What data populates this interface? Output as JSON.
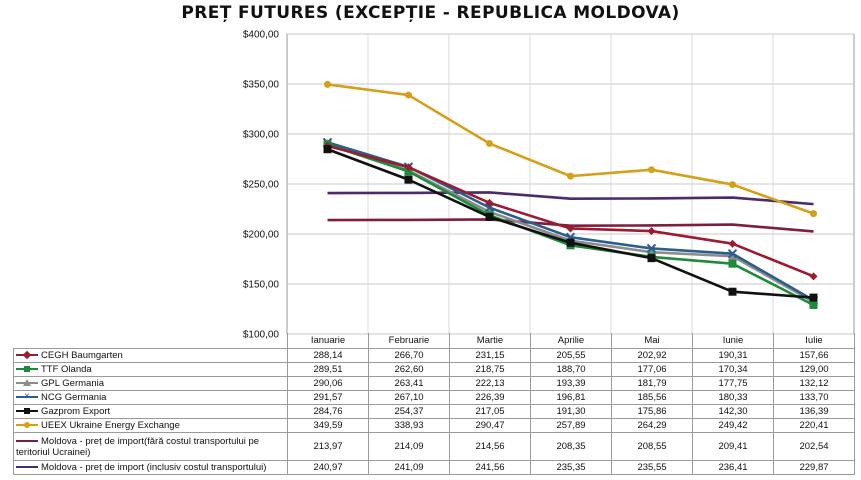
{
  "chart_data": {
    "type": "line",
    "title": "PREȚ FUTURES (EXCEPȚIE - REPUBLICA MOLDOVA)",
    "categories": [
      "Ianuarie",
      "Februarie",
      "Martie",
      "Aprilie",
      "Mai",
      "Iunie",
      "Iulie"
    ],
    "y_ticks": [
      "$400,00",
      "$350,00",
      "$300,00",
      "$250,00",
      "$200,00",
      "$150,00",
      "$100,00"
    ],
    "ylim": [
      100,
      400
    ],
    "grid": true,
    "legend": "data-table",
    "series": [
      {
        "name": "CEGH Baumgarten",
        "color": "#9B1B30",
        "marker": "diamond",
        "values": [
          288.14,
          266.7,
          231.15,
          205.55,
          202.92,
          190.31,
          157.66
        ],
        "labels": [
          "288,14",
          "266,70",
          "231,15",
          "205,55",
          "202,92",
          "190,31",
          "157,66"
        ]
      },
      {
        "name": "TTF Olanda",
        "color": "#1E8A3C",
        "marker": "square",
        "values": [
          289.51,
          262.6,
          218.75,
          188.7,
          177.06,
          170.34,
          129.0
        ],
        "labels": [
          "289,51",
          "262,60",
          "218,75",
          "188,70",
          "177,06",
          "170,34",
          "129,00"
        ]
      },
      {
        "name": "GPL Germania",
        "color": "#8C8C8C",
        "marker": "triangle",
        "values": [
          290.06,
          263.41,
          222.13,
          193.39,
          181.79,
          177.75,
          132.12
        ],
        "labels": [
          "290,06",
          "263,41",
          "222,13",
          "193,39",
          "181,79",
          "177,75",
          "132,12"
        ]
      },
      {
        "name": "NCG Germania",
        "color": "#2A5F8C",
        "marker": "cross",
        "values": [
          291.57,
          267.1,
          226.39,
          196.81,
          185.56,
          180.33,
          133.7
        ],
        "labels": [
          "291,57",
          "267,10",
          "226,39",
          "196,81",
          "185,56",
          "180,33",
          "133,70"
        ]
      },
      {
        "name": "Gazprom Export",
        "color": "#111111",
        "marker": "square",
        "values": [
          284.76,
          254.37,
          217.05,
          191.3,
          175.86,
          142.3,
          136.39
        ],
        "labels": [
          "284,76",
          "254,37",
          "217,05",
          "191,30",
          "175,86",
          "142,30",
          "136,39"
        ]
      },
      {
        "name": "UEEX Ukraine Energy Exchange",
        "color": "#D4A017",
        "marker": "circle",
        "values": [
          349.59,
          338.93,
          290.47,
          257.89,
          264.29,
          249.42,
          220.41
        ],
        "labels": [
          "349,59",
          "338,93",
          "290,47",
          "257,89",
          "264,29",
          "249,42",
          "220,41"
        ]
      },
      {
        "name": "Moldova - preț de import(fără costul transportului pe teritoriul Ucrainei)",
        "color": "#7A1F3D",
        "marker": "none",
        "values": [
          213.97,
          214.09,
          214.56,
          208.35,
          208.55,
          209.41,
          202.54
        ],
        "labels": [
          "213,97",
          "214,09",
          "214,56",
          "208,35",
          "208,55",
          "209,41",
          "202,54"
        ]
      },
      {
        "name": "Moldova - preț de import (inclusiv costul transportului)",
        "color": "#4B2A6E",
        "marker": "none",
        "values": [
          240.97,
          241.09,
          241.56,
          235.35,
          235.55,
          236.41,
          229.87
        ],
        "labels": [
          "240,97",
          "241,09",
          "241,56",
          "235,35",
          "235,55",
          "236,41",
          "229,87"
        ]
      }
    ]
  }
}
